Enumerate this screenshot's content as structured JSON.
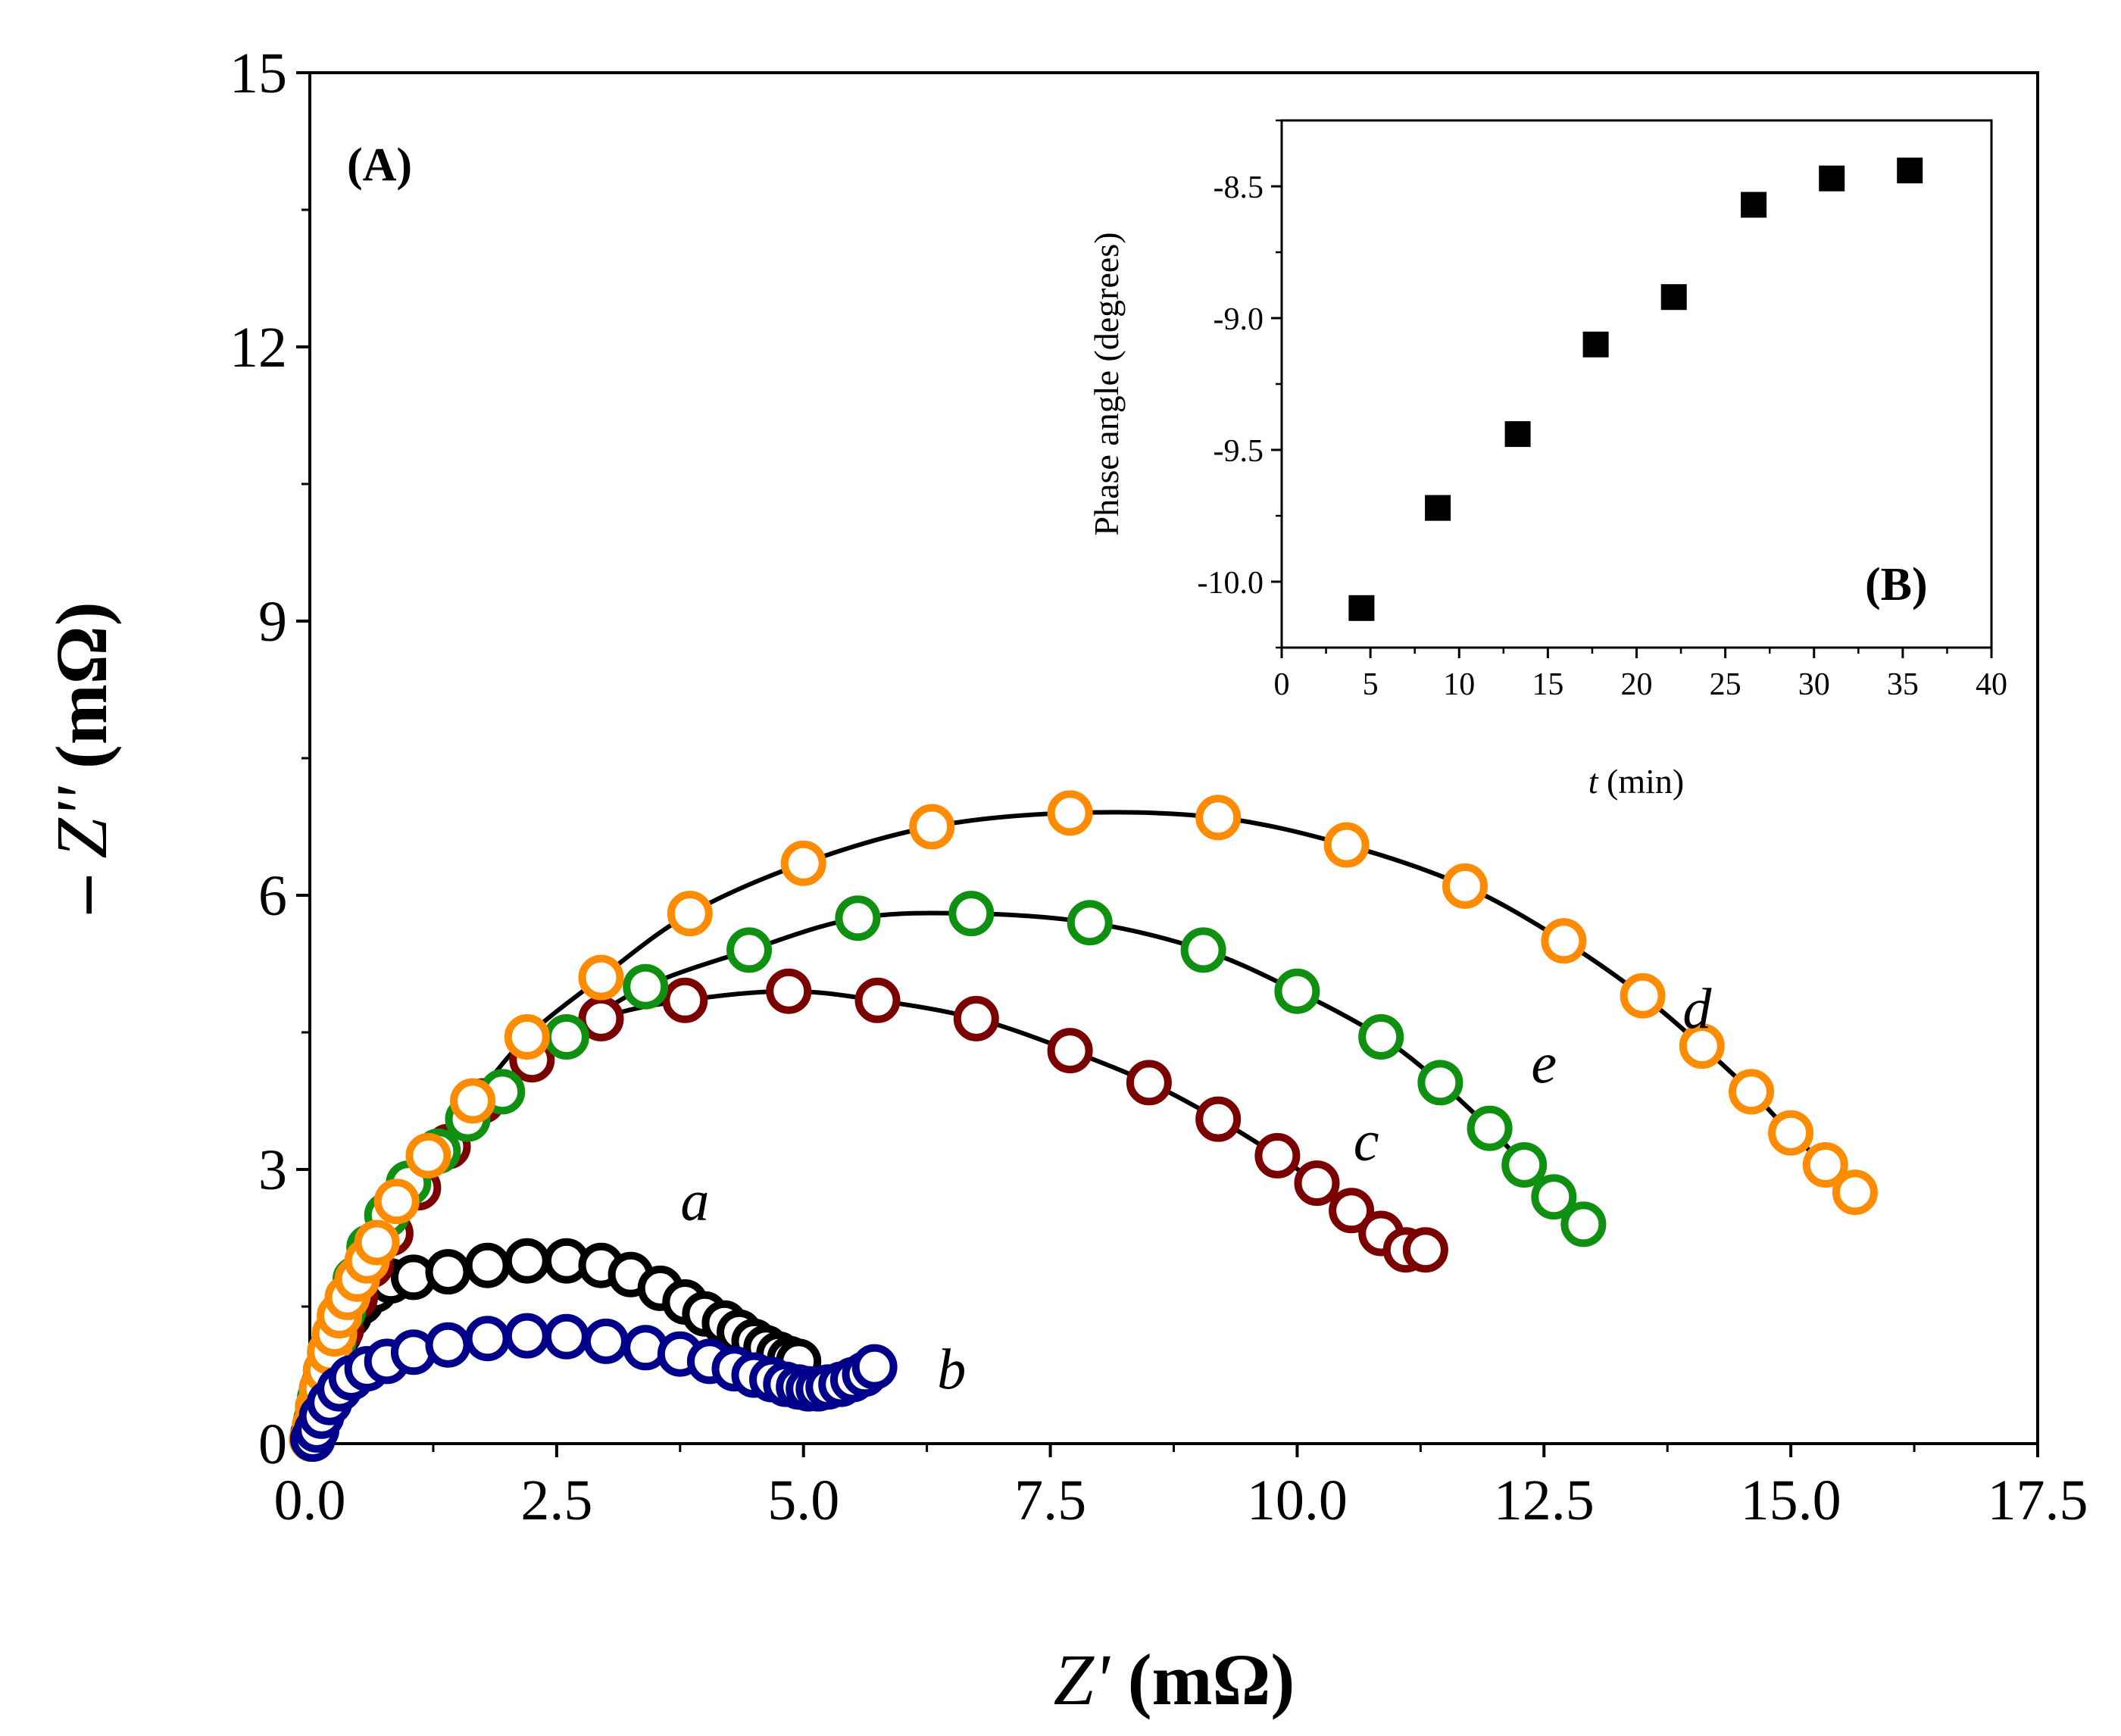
{
  "chart_data": [
    {
      "id": "A",
      "type": "scatter",
      "panel_label": "(A)",
      "xlabel_var": "Z'",
      "xlabel_unit": " (mΩ)",
      "ylabel_prefix": "– ",
      "ylabel_var": "Z''",
      "ylabel_unit": " (mΩ)",
      "xlim": [
        0,
        17.5
      ],
      "ylim": [
        0,
        15
      ],
      "xticks": [
        0,
        2.5,
        5,
        7.5,
        10,
        12.5,
        15,
        17.5
      ],
      "xtick_labels": [
        "0.0",
        "2.5",
        "5.0",
        "7.5",
        "10.0",
        "12.5",
        "15.0",
        "17.5"
      ],
      "yticks": [
        0,
        3,
        6,
        9,
        12,
        15
      ],
      "ytick_labels": [
        "0",
        "3",
        "6",
        "9",
        "12",
        "15"
      ],
      "marker": "open-circle",
      "fit_line": {
        "color": "#000000"
      },
      "series": [
        {
          "name": "a",
          "color": "#000000",
          "x": [
            0.02,
            0.05,
            0.08,
            0.12,
            0.16,
            0.22,
            0.3,
            0.4,
            0.52,
            0.66,
            0.82,
            1.05,
            1.4,
            1.8,
            2.2,
            2.6,
            2.95,
            3.25,
            3.55,
            3.8,
            4.0,
            4.2,
            4.35,
            4.5,
            4.62,
            4.75,
            4.86,
            4.95
          ],
          "y": [
            0.05,
            0.2,
            0.4,
            0.6,
            0.8,
            1.0,
            1.2,
            1.4,
            1.55,
            1.68,
            1.78,
            1.82,
            1.88,
            1.95,
            2.0,
            2.0,
            1.95,
            1.85,
            1.7,
            1.55,
            1.42,
            1.32,
            1.22,
            1.12,
            1.05,
            0.98,
            0.93,
            0.9
          ]
        },
        {
          "name": "b",
          "color": "#00008B",
          "x": [
            0.03,
            0.07,
            0.12,
            0.2,
            0.3,
            0.42,
            0.58,
            0.78,
            1.05,
            1.4,
            1.8,
            2.2,
            2.6,
            3.0,
            3.4,
            3.75,
            4.05,
            4.3,
            4.5,
            4.68,
            4.82,
            4.95,
            5.05,
            5.15,
            5.25,
            5.38,
            5.5,
            5.62,
            5.72
          ],
          "y": [
            0.05,
            0.15,
            0.3,
            0.45,
            0.6,
            0.72,
            0.82,
            0.9,
            1.0,
            1.08,
            1.15,
            1.18,
            1.17,
            1.12,
            1.05,
            0.98,
            0.9,
            0.82,
            0.75,
            0.7,
            0.65,
            0.62,
            0.6,
            0.6,
            0.62,
            0.65,
            0.7,
            0.76,
            0.84
          ]
        },
        {
          "name": "c",
          "color": "#7B0000",
          "x": [
            0.03,
            0.08,
            0.14,
            0.22,
            0.32,
            0.46,
            0.62,
            0.82,
            1.1,
            1.4,
            1.75,
            2.25,
            2.95,
            3.8,
            4.85,
            5.75,
            6.75,
            7.7,
            8.5,
            9.2,
            9.8,
            10.2,
            10.55,
            10.85,
            11.1,
            11.3
          ],
          "y": [
            0.1,
            0.35,
            0.65,
            0.95,
            1.25,
            1.6,
            1.95,
            2.3,
            2.8,
            3.25,
            3.75,
            4.2,
            4.65,
            4.85,
            4.95,
            4.85,
            4.65,
            4.3,
            3.95,
            3.55,
            3.15,
            2.85,
            2.55,
            2.3,
            2.12,
            2.12
          ]
        },
        {
          "name": "d",
          "color": "#FF8C00",
          "x": [
            0.02,
            0.05,
            0.08,
            0.12,
            0.16,
            0.2,
            0.25,
            0.3,
            0.38,
            0.48,
            0.58,
            0.68,
            0.88,
            1.2,
            1.65,
            2.2,
            2.95,
            3.85,
            5.0,
            6.3,
            7.7,
            9.2,
            10.5,
            11.7,
            12.7,
            13.5,
            14.1,
            14.6,
            15.0,
            15.35,
            15.65
          ],
          "y": [
            0.05,
            0.2,
            0.4,
            0.6,
            0.8,
            1.0,
            1.2,
            1.4,
            1.6,
            1.8,
            2.0,
            2.2,
            2.65,
            3.15,
            3.75,
            4.45,
            5.1,
            5.8,
            6.35,
            6.75,
            6.9,
            6.85,
            6.55,
            6.1,
            5.5,
            4.9,
            4.35,
            3.85,
            3.4,
            3.05,
            2.75
          ]
        },
        {
          "name": "e",
          "color": "#109010",
          "x": [
            0.02,
            0.06,
            0.1,
            0.16,
            0.24,
            0.34,
            0.46,
            0.6,
            0.78,
            1.0,
            1.3,
            1.6,
            1.95,
            2.6,
            3.4,
            4.45,
            5.55,
            6.7,
            7.9,
            9.05,
            10.0,
            10.85,
            11.45,
            11.95,
            12.3,
            12.6,
            12.9
          ],
          "y": [
            0.05,
            0.25,
            0.5,
            0.8,
            1.1,
            1.45,
            1.8,
            2.15,
            2.5,
            2.85,
            3.2,
            3.55,
            3.85,
            4.45,
            5.0,
            5.4,
            5.75,
            5.8,
            5.7,
            5.4,
            4.95,
            4.45,
            3.95,
            3.45,
            3.05,
            2.7,
            2.4
          ]
        }
      ],
      "curve_labels": [
        {
          "text": "a",
          "x": 3.9,
          "y": 2.45
        },
        {
          "text": "b",
          "x": 6.5,
          "y": 0.6
        },
        {
          "text": "c",
          "x": 10.7,
          "y": 3.1
        },
        {
          "text": "d",
          "x": 14.05,
          "y": 4.55
        },
        {
          "text": "e",
          "x": 12.5,
          "y": 3.95
        }
      ]
    },
    {
      "id": "B",
      "type": "scatter",
      "panel_label": "(B)",
      "xlabel_var": "t",
      "xlabel_unit": " (min)",
      "ylabel": "Phase angle (degrees)",
      "xlim": [
        0,
        40
      ],
      "ylim": [
        -10.25,
        -8.25
      ],
      "xticks": [
        0,
        5,
        10,
        15,
        20,
        25,
        30,
        35,
        40
      ],
      "xtick_labels": [
        "0",
        "5",
        "10",
        "15",
        "20",
        "25",
        "30",
        "35",
        "40"
      ],
      "yticks": [
        -10.0,
        -9.5,
        -9.0,
        -8.5
      ],
      "ytick_labels": [
        "-10.0",
        "-9.5",
        "-9.0",
        "-8.5"
      ],
      "marker": "filled-square",
      "color": "#000000",
      "x": [
        4.5,
        8.8,
        13.3,
        17.7,
        22.1,
        26.6,
        31.0,
        35.4
      ],
      "y": [
        -10.1,
        -9.72,
        -9.44,
        -9.1,
        -8.92,
        -8.57,
        -8.47,
        -8.44
      ]
    }
  ]
}
